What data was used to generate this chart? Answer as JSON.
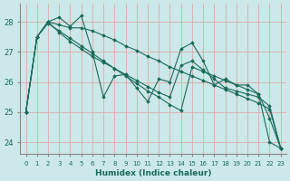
{
  "xlabel": "Humidex (Indice chaleur)",
  "bg_color": "#cce8e8",
  "grid_color": "#e8c8c8",
  "line_color": "#1a6b5a",
  "xlim": [
    -0.5,
    23.5
  ],
  "ylim": [
    23.6,
    28.6
  ],
  "yticks": [
    24,
    25,
    26,
    27,
    28
  ],
  "xticks": [
    0,
    1,
    2,
    3,
    4,
    5,
    6,
    7,
    8,
    9,
    10,
    11,
    12,
    13,
    14,
    15,
    16,
    17,
    18,
    19,
    20,
    21,
    22,
    23
  ],
  "series": [
    [
      25.0,
      27.5,
      28.0,
      28.15,
      27.85,
      28.2,
      27.0,
      25.5,
      26.2,
      26.25,
      25.8,
      25.35,
      26.1,
      26.0,
      27.1,
      27.3,
      26.7,
      25.9,
      26.1,
      25.9,
      25.9,
      25.6,
      24.8,
      23.8
    ],
    [
      25.0,
      27.5,
      28.0,
      27.9,
      27.8,
      27.8,
      27.7,
      27.55,
      27.4,
      27.2,
      27.05,
      26.85,
      26.7,
      26.5,
      26.35,
      26.2,
      26.05,
      25.9,
      25.75,
      25.6,
      25.45,
      25.3,
      25.1,
      23.8
    ],
    [
      25.0,
      27.5,
      27.95,
      27.7,
      27.45,
      27.2,
      26.95,
      26.7,
      26.45,
      26.2,
      25.95,
      25.7,
      25.5,
      25.25,
      25.05,
      26.5,
      26.35,
      26.2,
      26.05,
      25.9,
      25.75,
      25.6,
      24.0,
      23.8
    ],
    [
      25.0,
      27.5,
      28.0,
      27.65,
      27.35,
      27.1,
      26.85,
      26.65,
      26.45,
      26.25,
      26.05,
      25.85,
      25.65,
      25.5,
      26.55,
      26.7,
      26.4,
      26.1,
      25.8,
      25.7,
      25.6,
      25.5,
      25.2,
      23.8
    ]
  ]
}
